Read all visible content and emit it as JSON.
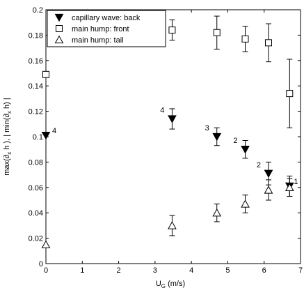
{
  "chart_data": {
    "type": "scatter",
    "title": "",
    "xlabel_main": "U",
    "xlabel_sub": "G",
    "xlabel_unit": " (m/s)",
    "ylabel_parts": [
      {
        "t": "max(∂",
        "sub": false
      },
      {
        "t": "x",
        "sub": true
      },
      {
        "t": " h ), | min(∂",
        "sub": false
      },
      {
        "t": "x",
        "sub": true
      },
      {
        "t": " h) |",
        "sub": false
      }
    ],
    "xlim": [
      0,
      7
    ],
    "ylim": [
      0,
      0.2
    ],
    "x_ticks": [
      0,
      1,
      2,
      3,
      4,
      5,
      6,
      7
    ],
    "x_tick_labels": [
      "0",
      "1",
      "2",
      "3",
      "4",
      "5",
      "6",
      "7"
    ],
    "y_ticks": [
      0,
      0.02,
      0.04,
      0.06,
      0.08,
      0.1,
      0.12,
      0.14,
      0.16,
      0.18,
      0.2
    ],
    "y_tick_labels": [
      "0",
      "0.02",
      "0.04",
      "0.06",
      "0.08",
      "0.1",
      "0.12",
      "0.14",
      "0.16",
      "0.18",
      "0.2"
    ],
    "grid": false,
    "legend_position": "top-left",
    "series": [
      {
        "name": "capillary wave: back",
        "marker": "triangle-down-filled",
        "points": [
          {
            "x": 0.0,
            "y": 0.101,
            "err": 0.0,
            "label": "4"
          },
          {
            "x": 3.47,
            "y": 0.114,
            "err": 0.008,
            "label": "4"
          },
          {
            "x": 4.7,
            "y": 0.1,
            "err": 0.007,
            "label": "3"
          },
          {
            "x": 5.48,
            "y": 0.09,
            "err": 0.007,
            "label": "2"
          },
          {
            "x": 6.12,
            "y": 0.071,
            "err": 0.009,
            "label": "2"
          },
          {
            "x": 6.7,
            "y": 0.061,
            "err": 0.008,
            "label": "1"
          }
        ]
      },
      {
        "name": "main hump: front",
        "marker": "square-open",
        "points": [
          {
            "x": 0.0,
            "y": 0.149,
            "err": 0.0
          },
          {
            "x": 3.47,
            "y": 0.184,
            "err": 0.008
          },
          {
            "x": 4.7,
            "y": 0.182,
            "err": 0.013
          },
          {
            "x": 5.48,
            "y": 0.177,
            "err": 0.01
          },
          {
            "x": 6.12,
            "y": 0.174,
            "err": 0.015
          },
          {
            "x": 6.7,
            "y": 0.134,
            "err": 0.027
          }
        ]
      },
      {
        "name": "main hump: tail",
        "marker": "triangle-up-open",
        "points": [
          {
            "x": 0.0,
            "y": 0.015,
            "err": 0.0
          },
          {
            "x": 3.47,
            "y": 0.03,
            "err": 0.008
          },
          {
            "x": 4.7,
            "y": 0.04,
            "err": 0.007
          },
          {
            "x": 5.48,
            "y": 0.047,
            "err": 0.007
          },
          {
            "x": 6.12,
            "y": 0.058,
            "err": 0.008
          },
          {
            "x": 6.7,
            "y": 0.06,
            "err": 0.007
          }
        ]
      }
    ]
  }
}
